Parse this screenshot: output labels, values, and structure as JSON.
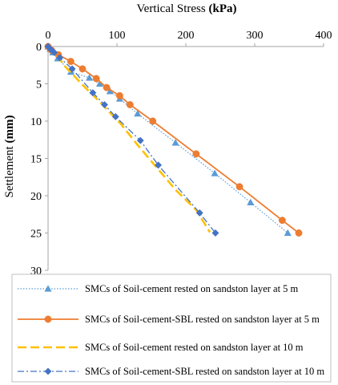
{
  "chart_data": {
    "type": "line",
    "title": "",
    "xlabel": "Vertical Stress",
    "xlabel_unit": "(kPa)",
    "ylabel": "Settlement",
    "ylabel_unit": "(mm)",
    "x_axis_position": "top",
    "y_axis_inverted": true,
    "xlim": [
      0,
      400
    ],
    "ylim": [
      0,
      30
    ],
    "xticks": [
      "0",
      "100",
      "200",
      "300",
      "400"
    ],
    "yticks": [
      "0",
      "5",
      "10",
      "15",
      "20",
      "25",
      "30"
    ],
    "grid": false,
    "legend_position": "bottom",
    "series": [
      {
        "name": "SMCs of Soil-cement rested on sandston layer at 5 m",
        "color": "#5b9bd5",
        "line_style": "dotted",
        "marker": "triangle",
        "points": [
          [
            0,
            0
          ],
          [
            3,
            0.3
          ],
          [
            7,
            0.8
          ],
          [
            14,
            1.6
          ],
          [
            33,
            3.4
          ],
          [
            60,
            4.2
          ],
          [
            75,
            5.0
          ],
          [
            90,
            6.0
          ],
          [
            104,
            7.0
          ],
          [
            130,
            9.0
          ],
          [
            185,
            12.9
          ],
          [
            242,
            17.0
          ],
          [
            294,
            20.9
          ],
          [
            348,
            25.0
          ]
        ]
      },
      {
        "name": "SMCs of Soil-cement-SBL rested on sandston layer at 5 m",
        "color": "#ed7d31",
        "line_style": "solid",
        "marker": "circle",
        "points": [
          [
            0,
            0
          ],
          [
            5,
            0.5
          ],
          [
            15,
            1.1
          ],
          [
            33,
            2.0
          ],
          [
            50,
            3.0
          ],
          [
            70,
            4.3
          ],
          [
            85,
            5.5
          ],
          [
            104,
            6.6
          ],
          [
            119,
            7.8
          ],
          [
            152,
            10.0
          ],
          [
            215,
            14.4
          ],
          [
            278,
            18.8
          ],
          [
            340,
            23.3
          ],
          [
            364,
            25.0
          ]
        ]
      },
      {
        "name": "SMCs of Soil-cement rested on sandston layer at 10 m",
        "color": "#ffc000",
        "line_style": "dashed",
        "marker": "none",
        "points": [
          [
            0,
            0
          ],
          [
            10,
            0.8
          ],
          [
            25,
            2.7
          ],
          [
            55,
            5.6
          ],
          [
            75,
            7.4
          ],
          [
            90,
            8.9
          ],
          [
            105,
            10.3
          ],
          [
            130,
            13.2
          ],
          [
            185,
            19.2
          ],
          [
            215,
            21.9
          ],
          [
            235,
            24.9
          ]
        ]
      },
      {
        "name": "SMCs of Soil-cement-SBL rested on sandston layer at 10 m",
        "color": "#4472c4",
        "line_style": "dashdot",
        "marker": "diamond",
        "points": [
          [
            0,
            0
          ],
          [
            4,
            0.4
          ],
          [
            9,
            0.8
          ],
          [
            17,
            1.5
          ],
          [
            35,
            3.0
          ],
          [
            65,
            6.2
          ],
          [
            82,
            7.8
          ],
          [
            98,
            9.4
          ],
          [
            134,
            12.6
          ],
          [
            160,
            15.9
          ],
          [
            220,
            22.3
          ],
          [
            243,
            25.0
          ]
        ]
      }
    ]
  }
}
